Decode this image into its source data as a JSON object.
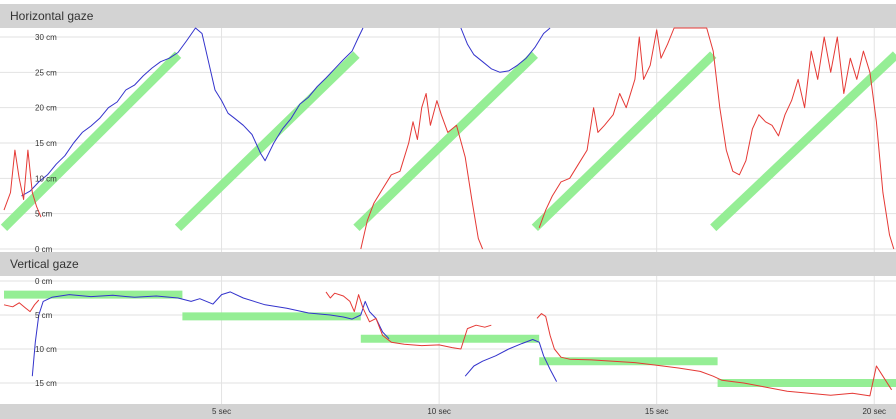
{
  "chart_data": [
    {
      "type": "line",
      "title": "Horizontal gaze",
      "y_unit": "cm",
      "ylim": [
        0,
        32
      ],
      "y_ticks": [
        {
          "value": 0,
          "label": "0 cm"
        },
        {
          "value": 5,
          "label": "5 cm"
        },
        {
          "value": 10,
          "label": "10 cm"
        },
        {
          "value": 15,
          "label": "15 cm"
        },
        {
          "value": 20,
          "label": "20 cm"
        },
        {
          "value": 25,
          "label": "25 cm"
        },
        {
          "value": 30,
          "label": "30 cm"
        }
      ],
      "xlim": [
        0,
        20.5
      ],
      "grid": true,
      "colors": {
        "target": "#90ee90",
        "blue": "#3333cc",
        "red": "#e53935"
      },
      "target_segments": [
        {
          "x": [
            0.0,
            4.0
          ],
          "y": [
            3.0,
            27.5
          ]
        },
        {
          "x": [
            4.0,
            8.1
          ],
          "y": [
            3.0,
            27.5
          ]
        },
        {
          "x": [
            8.1,
            12.2
          ],
          "y": [
            3.0,
            27.5
          ]
        },
        {
          "x": [
            12.2,
            16.3
          ],
          "y": [
            3.0,
            27.5
          ]
        },
        {
          "x": [
            16.3,
            20.5
          ],
          "y": [
            3.0,
            27.5
          ]
        }
      ],
      "series": [
        {
          "color": "blue",
          "values": [
            [
              0.4,
              7.5
            ],
            [
              0.6,
              8.2
            ],
            [
              0.8,
              9.5
            ],
            [
              1.0,
              10.5
            ],
            [
              1.2,
              12.0
            ],
            [
              1.4,
              13.2
            ],
            [
              1.6,
              15.0
            ],
            [
              1.8,
              16.5
            ],
            [
              2.0,
              17.4
            ],
            [
              2.2,
              18.5
            ],
            [
              2.4,
              20.0
            ],
            [
              2.6,
              20.8
            ],
            [
              2.8,
              22.5
            ],
            [
              3.0,
              23.2
            ],
            [
              3.2,
              24.5
            ],
            [
              3.4,
              25.6
            ],
            [
              3.6,
              26.5
            ],
            [
              3.8,
              27.0
            ],
            [
              4.0,
              27.8
            ],
            [
              4.2,
              29.5
            ],
            [
              4.4,
              31.5
            ],
            [
              4.55,
              30.5
            ],
            [
              4.7,
              26.5
            ],
            [
              4.85,
              22.5
            ],
            [
              5.0,
              21.0
            ],
            [
              5.15,
              19.2
            ],
            [
              5.3,
              18.5
            ],
            [
              5.5,
              17.5
            ],
            [
              5.7,
              16.2
            ],
            [
              5.9,
              13.5
            ],
            [
              6.0,
              12.5
            ],
            [
              6.2,
              15.0
            ],
            [
              6.4,
              17.0
            ],
            [
              6.6,
              18.5
            ],
            [
              6.8,
              20.5
            ],
            [
              7.0,
              21.5
            ],
            [
              7.2,
              23.0
            ],
            [
              7.4,
              24.2
            ],
            [
              7.6,
              25.5
            ],
            [
              7.8,
              26.8
            ],
            [
              8.0,
              28.0
            ],
            [
              8.15,
              30.0
            ],
            [
              8.25,
              32.0
            ]
          ]
        },
        {
          "color": "blue",
          "values": [
            [
              10.5,
              32.0
            ],
            [
              10.65,
              29.0
            ],
            [
              10.8,
              27.5
            ],
            [
              11.0,
              26.5
            ],
            [
              11.2,
              25.5
            ],
            [
              11.4,
              25.0
            ],
            [
              11.6,
              25.2
            ],
            [
              11.8,
              26.0
            ],
            [
              12.0,
              27.0
            ],
            [
              12.2,
              28.5
            ],
            [
              12.4,
              30.5
            ],
            [
              12.55,
              32.0
            ]
          ]
        },
        {
          "color": "red",
          "values": [
            [
              0.0,
              5.5
            ],
            [
              0.15,
              8.0
            ],
            [
              0.25,
              14.0
            ],
            [
              0.35,
              10.0
            ],
            [
              0.45,
              7.0
            ],
            [
              0.55,
              14.0
            ],
            [
              0.65,
              8.0
            ],
            [
              0.75,
              6.0
            ],
            [
              0.85,
              4.5
            ]
          ]
        },
        {
          "color": "red",
          "values": [
            [
              8.2,
              0.0
            ],
            [
              8.35,
              4.0
            ],
            [
              8.5,
              6.5
            ],
            [
              8.7,
              8.5
            ],
            [
              8.9,
              10.5
            ],
            [
              9.1,
              11.0
            ],
            [
              9.3,
              15.0
            ],
            [
              9.4,
              18.0
            ],
            [
              9.5,
              15.5
            ],
            [
              9.6,
              20.0
            ],
            [
              9.7,
              22.0
            ],
            [
              9.8,
              17.5
            ],
            [
              9.95,
              21.0
            ],
            [
              10.05,
              19.0
            ],
            [
              10.2,
              16.5
            ],
            [
              10.4,
              17.5
            ],
            [
              10.6,
              13.0
            ],
            [
              10.75,
              7.0
            ],
            [
              10.9,
              1.5
            ],
            [
              11.0,
              0.0
            ]
          ]
        },
        {
          "color": "red",
          "values": [
            [
              12.3,
              3.0
            ],
            [
              12.45,
              5.5
            ],
            [
              12.6,
              7.5
            ],
            [
              12.8,
              9.5
            ],
            [
              13.0,
              10.0
            ],
            [
              13.2,
              12.0
            ],
            [
              13.4,
              14.0
            ],
            [
              13.55,
              20.0
            ],
            [
              13.65,
              16.5
            ],
            [
              13.8,
              17.5
            ],
            [
              14.0,
              19.0
            ],
            [
              14.15,
              22.0
            ],
            [
              14.3,
              20.0
            ],
            [
              14.5,
              24.0
            ],
            [
              14.6,
              30.0
            ],
            [
              14.7,
              24.0
            ],
            [
              14.85,
              26.0
            ],
            [
              15.0,
              31.0
            ],
            [
              15.1,
              27.0
            ],
            [
              15.25,
              29.0
            ],
            [
              15.4,
              32.0
            ],
            [
              15.6,
              32.0
            ],
            [
              15.8,
              32.0
            ],
            [
              16.0,
              32.0
            ],
            [
              16.15,
              32.0
            ],
            [
              16.3,
              28.0
            ],
            [
              16.45,
              20.0
            ],
            [
              16.6,
              14.0
            ],
            [
              16.75,
              11.0
            ],
            [
              16.9,
              10.5
            ],
            [
              17.05,
              12.5
            ],
            [
              17.2,
              17.0
            ],
            [
              17.35,
              19.0
            ],
            [
              17.5,
              18.0
            ],
            [
              17.65,
              17.5
            ],
            [
              17.8,
              16.0
            ],
            [
              17.95,
              19.0
            ],
            [
              18.1,
              21.0
            ],
            [
              18.25,
              24.0
            ],
            [
              18.4,
              20.0
            ],
            [
              18.55,
              28.0
            ],
            [
              18.7,
              24.0
            ],
            [
              18.85,
              30.0
            ],
            [
              19.0,
              25.0
            ],
            [
              19.15,
              30.0
            ],
            [
              19.3,
              22.0
            ],
            [
              19.45,
              27.0
            ],
            [
              19.6,
              24.0
            ],
            [
              19.75,
              28.0
            ],
            [
              19.9,
              25.0
            ],
            [
              20.05,
              18.0
            ],
            [
              20.2,
              8.0
            ],
            [
              20.35,
              2.0
            ],
            [
              20.45,
              0.0
            ]
          ]
        }
      ]
    },
    {
      "type": "line",
      "title": "Vertical gaze",
      "y_unit": "cm",
      "ylim": [
        0,
        17
      ],
      "y_ticks": [
        {
          "value": 0,
          "label": "0 cm"
        },
        {
          "value": 5,
          "label": "5 cm"
        },
        {
          "value": 10,
          "label": "10 cm"
        },
        {
          "value": 15,
          "label": "15 cm"
        }
      ],
      "xlim": [
        0,
        20.5
      ],
      "x_ticks": [
        {
          "value": 5,
          "label": "5 sec"
        },
        {
          "value": 10,
          "label": "10 sec"
        },
        {
          "value": 15,
          "label": "15 sec"
        },
        {
          "value": 20,
          "label": "20 sec"
        }
      ],
      "grid": true,
      "target_segments": [
        {
          "x": [
            0.0,
            4.1
          ],
          "y": [
            2.0,
            2.0
          ]
        },
        {
          "x": [
            4.1,
            8.2
          ],
          "y": [
            5.2,
            5.2
          ]
        },
        {
          "x": [
            8.2,
            12.3
          ],
          "y": [
            8.5,
            8.5
          ]
        },
        {
          "x": [
            12.3,
            16.4
          ],
          "y": [
            11.8,
            11.8
          ]
        },
        {
          "x": [
            16.4,
            20.5
          ],
          "y": [
            15.0,
            15.0
          ]
        }
      ],
      "series": [
        {
          "color": "red",
          "values": [
            [
              0.0,
              3.5
            ],
            [
              0.2,
              3.8
            ],
            [
              0.35,
              3.2
            ],
            [
              0.5,
              4.0
            ],
            [
              0.6,
              4.5
            ],
            [
              0.7,
              3.5
            ],
            [
              0.8,
              2.8
            ]
          ]
        },
        {
          "color": "blue",
          "values": [
            [
              0.65,
              14.0
            ],
            [
              0.72,
              9.0
            ],
            [
              0.8,
              5.0
            ],
            [
              0.9,
              3.0
            ],
            [
              1.1,
              2.4
            ],
            [
              1.5,
              2.0
            ],
            [
              2.0,
              2.3
            ],
            [
              2.5,
              2.1
            ],
            [
              3.0,
              2.4
            ],
            [
              3.5,
              2.2
            ],
            [
              4.0,
              2.5
            ],
            [
              4.3,
              3.0
            ],
            [
              4.5,
              2.6
            ],
            [
              4.8,
              3.4
            ],
            [
              5.0,
              2.0
            ],
            [
              5.2,
              1.6
            ],
            [
              5.5,
              2.5
            ],
            [
              6.0,
              3.5
            ],
            [
              6.5,
              4.0
            ],
            [
              7.0,
              4.7
            ],
            [
              7.5,
              5.0
            ],
            [
              7.8,
              5.3
            ],
            [
              8.0,
              5.6
            ],
            [
              8.2,
              5.0
            ],
            [
              8.3,
              3.0
            ],
            [
              8.4,
              4.5
            ],
            [
              8.55,
              5.5
            ],
            [
              8.7,
              7.5
            ],
            [
              8.85,
              8.5
            ]
          ]
        },
        {
          "color": "red",
          "values": [
            [
              7.4,
              1.6
            ],
            [
              7.5,
              2.5
            ],
            [
              7.6,
              1.8
            ],
            [
              7.8,
              2.2
            ],
            [
              7.95,
              3.0
            ],
            [
              8.05,
              4.5
            ],
            [
              8.15,
              2.0
            ],
            [
              8.25,
              4.0
            ],
            [
              8.4,
              6.0
            ],
            [
              8.55,
              5.5
            ],
            [
              8.7,
              8.0
            ],
            [
              8.9,
              9.0
            ],
            [
              9.2,
              9.3
            ],
            [
              9.6,
              9.5
            ],
            [
              10.0,
              9.4
            ],
            [
              10.3,
              9.8
            ],
            [
              10.5,
              10.0
            ],
            [
              10.65,
              7.0
            ],
            [
              10.85,
              6.5
            ],
            [
              11.05,
              6.8
            ],
            [
              11.2,
              6.5
            ]
          ]
        },
        {
          "color": "blue",
          "values": [
            [
              10.6,
              14.0
            ],
            [
              10.8,
              12.5
            ],
            [
              11.0,
              11.8
            ],
            [
              11.3,
              11.0
            ],
            [
              11.6,
              10.0
            ],
            [
              11.9,
              9.2
            ],
            [
              12.15,
              8.6
            ],
            [
              12.3,
              9.0
            ],
            [
              12.4,
              11.0
            ],
            [
              12.55,
              13.0
            ],
            [
              12.7,
              14.8
            ]
          ]
        },
        {
          "color": "red",
          "values": [
            [
              12.25,
              5.5
            ],
            [
              12.35,
              4.8
            ],
            [
              12.45,
              5.2
            ],
            [
              12.55,
              8.0
            ],
            [
              12.65,
              10.0
            ],
            [
              12.8,
              11.2
            ],
            [
              13.0,
              11.5
            ],
            [
              13.5,
              11.6
            ],
            [
              14.0,
              11.8
            ],
            [
              14.5,
              12.0
            ],
            [
              15.0,
              12.4
            ],
            [
              15.5,
              12.8
            ],
            [
              16.0,
              13.3
            ],
            [
              16.3,
              14.0
            ],
            [
              16.5,
              14.6
            ],
            [
              17.0,
              15.0
            ],
            [
              17.5,
              15.6
            ],
            [
              18.0,
              16.2
            ],
            [
              18.5,
              16.5
            ],
            [
              19.0,
              16.8
            ],
            [
              19.5,
              16.5
            ],
            [
              19.9,
              16.9
            ],
            [
              20.05,
              12.5
            ],
            [
              20.2,
              14.0
            ],
            [
              20.4,
              16.0
            ]
          ]
        }
      ]
    }
  ]
}
